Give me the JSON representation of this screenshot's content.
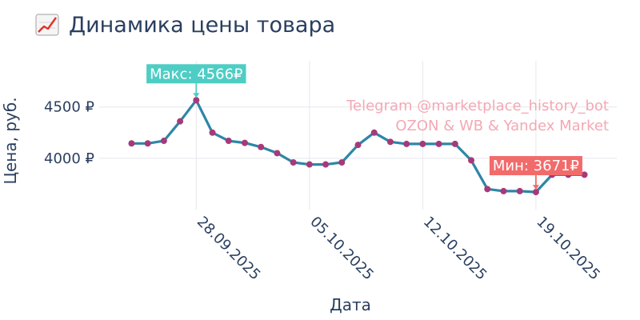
{
  "chart_data": {
    "type": "line",
    "title_icon": "chart-increasing-icon",
    "title": "Динамика цены товара",
    "xlabel": "Дата",
    "ylabel": "Цена, руб.",
    "x_tick_labels": [
      "28.09.2025",
      "05.10.2025",
      "12.10.2025",
      "19.10.2025"
    ],
    "x_ticks": [
      "2025-09-28",
      "2025-10-05",
      "2025-10-12",
      "2025-10-19"
    ],
    "y_tick_labels": [
      "4000 ₽",
      "4500 ₽"
    ],
    "y_ticks": [
      4000,
      4500
    ],
    "xlim": [
      "2025-09-22",
      "2025-10-24"
    ],
    "ylim": [
      3500,
      4950
    ],
    "grid": true,
    "series": [
      {
        "line_color": "#2e86a7",
        "marker_color": "#a63a79",
        "x": [
          "2025-09-24",
          "2025-09-25",
          "2025-09-26",
          "2025-09-27",
          "2025-09-28",
          "2025-09-29",
          "2025-09-30",
          "2025-10-01",
          "2025-10-02",
          "2025-10-03",
          "2025-10-04",
          "2025-10-05",
          "2025-10-06",
          "2025-10-07",
          "2025-10-08",
          "2025-10-09",
          "2025-10-10",
          "2025-10-11",
          "2025-10-12",
          "2025-10-13",
          "2025-10-14",
          "2025-10-15",
          "2025-10-16",
          "2025-10-17",
          "2025-10-18",
          "2025-10-19",
          "2025-10-20",
          "2025-10-21",
          "2025-10-22"
        ],
        "y": [
          4145,
          4145,
          4170,
          4360,
          4566,
          4250,
          4170,
          4150,
          4110,
          4050,
          3960,
          3940,
          3940,
          3960,
          4130,
          4250,
          4160,
          4140,
          4140,
          4140,
          4140,
          3980,
          3700,
          3680,
          3680,
          3671,
          3840,
          3840,
          3840
        ]
      }
    ],
    "annotations": [
      {
        "text": "Макс: 4566₽",
        "x": "2025-09-28",
        "y": 4566,
        "bg": "#4ecdc4"
      },
      {
        "text": "Мин: 3671₽",
        "x": "2025-10-19",
        "y": 3671,
        "bg": "#f26b6b"
      }
    ],
    "watermark": [
      "Telegram @marketplace_history_bot",
      "OZON & WB & Yandex Market"
    ]
  }
}
